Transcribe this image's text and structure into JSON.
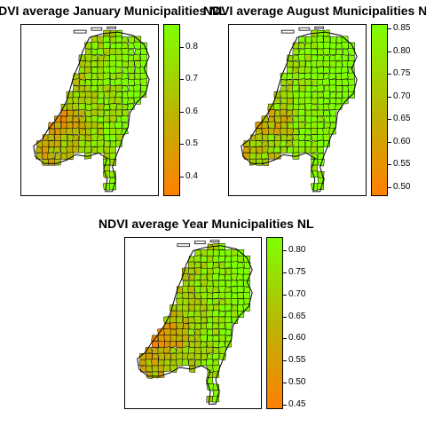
{
  "maps": [
    {
      "title": "NDVI average January Municipalities NL",
      "legend_ticks": [
        "0.4",
        "0.5",
        "0.6",
        "0.7",
        "0.8"
      ],
      "legend_min": 0.34,
      "legend_max": 0.87,
      "color_low": "#ff7f00",
      "color_high": "#7fff00"
    },
    {
      "title": "NDVI average August Municipalities NL",
      "legend_ticks": [
        "0.50",
        "0.55",
        "0.60",
        "0.65",
        "0.70",
        "0.75",
        "0.80",
        "0.85"
      ],
      "legend_min": 0.48,
      "legend_max": 0.86,
      "color_low": "#ff7f00",
      "color_high": "#7fff00"
    },
    {
      "title": "NDVI average Year Municipalities NL",
      "legend_ticks": [
        "0.45",
        "0.50",
        "0.55",
        "0.60",
        "0.65",
        "0.70",
        "0.75",
        "0.80"
      ],
      "legend_min": 0.44,
      "legend_max": 0.83,
      "color_low": "#ff7f00",
      "color_high": "#7fff00"
    }
  ]
}
